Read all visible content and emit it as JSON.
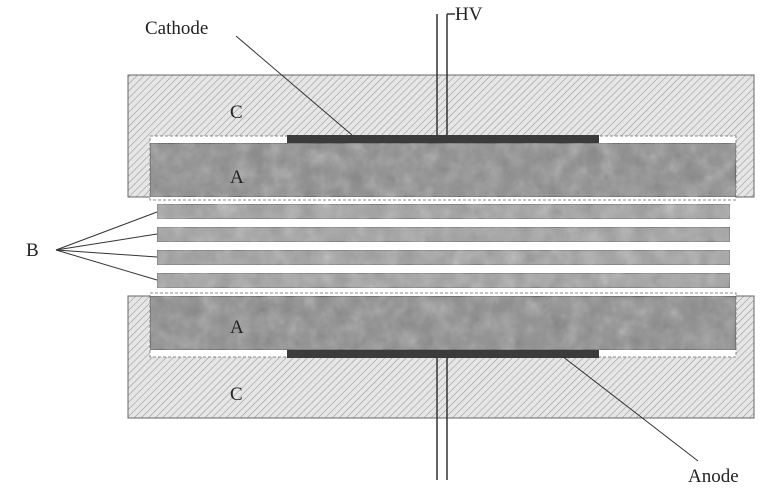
{
  "labels": {
    "cathode": "Cathode",
    "anode": "Anode",
    "hv": "HV",
    "b": "B",
    "a_top": "A",
    "a_bottom": "A",
    "c_top": "C",
    "c_bottom": "C"
  },
  "colors": {
    "line": "#3a3a3a",
    "casing_fill": "#e6e6e6",
    "plate_fill": "#8c8c8c",
    "layer_fill": "#a3a3a3",
    "electrode_fill": "#3b3b3b",
    "background": "#ffffff"
  },
  "structure": {
    "separator_layers": 4
  }
}
